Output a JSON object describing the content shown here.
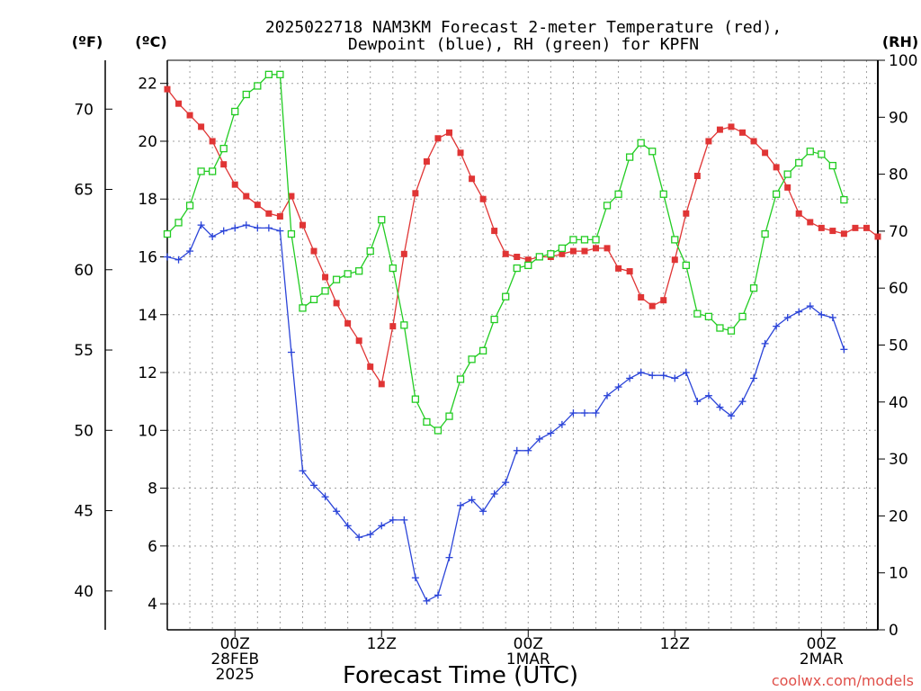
{
  "title_line1": "2025022718 NAM3KM Forecast 2-meter Temperature (red),",
  "title_line2": "Dewpoint (blue), RH (green) for KPFN",
  "xlabel": "Forecast Time (UTC)",
  "credit": "coolwx.com/models",
  "units": {
    "fahrenheit": "(ºF)",
    "celsius": "(ºC)",
    "rh": "(RH)"
  },
  "colors": {
    "temperature": "#e03535",
    "dewpoint": "#2b44d8",
    "rh": "#22cc22",
    "grid": "#a0a0a0"
  },
  "chart_data": {
    "type": "line",
    "x": [
      0,
      1,
      2,
      3,
      4,
      5,
      6,
      7,
      8,
      9,
      10,
      11,
      12,
      13,
      14,
      15,
      16,
      17,
      18,
      19,
      20,
      21,
      22,
      23,
      24,
      25,
      26,
      27,
      28,
      29,
      30,
      31,
      32,
      33,
      34,
      35,
      36,
      37,
      38,
      39,
      40,
      41,
      42,
      43,
      44,
      45,
      46,
      47,
      48,
      49,
      50,
      51,
      52,
      53,
      54,
      55,
      56,
      57,
      58,
      59,
      60,
      61,
      62,
      63
    ],
    "x_tick_labels": [
      {
        "x": 6,
        "lines": [
          "00Z",
          "28FEB",
          "2025"
        ]
      },
      {
        "x": 19,
        "lines": [
          "12Z"
        ]
      },
      {
        "x": 32,
        "lines": [
          "00Z",
          "1MAR"
        ]
      },
      {
        "x": 45,
        "lines": [
          "12Z"
        ]
      },
      {
        "x": 58,
        "lines": [
          "00Z",
          "2MAR"
        ]
      }
    ],
    "xlim": [
      0,
      63
    ],
    "left_axis_celsius": {
      "ylim": [
        3.1,
        22.8
      ],
      "ticks": [
        4,
        6,
        8,
        10,
        12,
        14,
        16,
        18,
        20,
        22
      ]
    },
    "left_axis_fahrenheit": {
      "ticks": [
        40,
        45,
        50,
        55,
        60,
        65,
        70
      ]
    },
    "right_axis_rh": {
      "ylim": [
        0,
        100
      ],
      "ticks": [
        0,
        10,
        20,
        30,
        40,
        50,
        60,
        70,
        80,
        90,
        100
      ]
    },
    "grid": true,
    "series": [
      {
        "name": "Temperature",
        "axis": "celsius",
        "marker": "filled-square",
        "values": [
          21.8,
          21.3,
          20.9,
          20.5,
          20.0,
          19.2,
          18.5,
          18.1,
          17.8,
          17.5,
          17.4,
          18.1,
          17.1,
          16.2,
          15.3,
          14.4,
          13.7,
          13.1,
          12.2,
          11.6,
          13.6,
          16.1,
          18.2,
          19.3,
          20.1,
          20.3,
          19.6,
          18.7,
          18.0,
          16.9,
          16.1,
          16.0,
          15.9,
          16.0,
          16.0,
          16.1,
          16.2,
          16.2,
          16.3,
          16.3,
          15.6,
          15.5,
          14.6,
          14.3,
          14.5,
          15.9,
          17.5,
          18.8,
          20.0,
          20.4,
          20.5,
          20.3,
          20.0,
          19.6,
          19.1,
          18.4,
          17.5,
          17.2,
          17.0,
          16.9,
          16.8,
          17.0,
          17.0,
          16.7
        ]
      },
      {
        "name": "Dewpoint",
        "axis": "celsius",
        "marker": "plus",
        "values": [
          16.0,
          15.9,
          16.2,
          17.1,
          16.7,
          16.9,
          17.0,
          17.1,
          17.0,
          17.0,
          16.9,
          12.7,
          8.6,
          8.1,
          7.7,
          7.2,
          6.7,
          6.3,
          6.4,
          6.7,
          6.9,
          6.9,
          4.9,
          4.1,
          4.3,
          5.6,
          7.4,
          7.6,
          7.2,
          7.8,
          8.2,
          9.3,
          9.3,
          9.7,
          9.9,
          10.2,
          10.6,
          10.6,
          10.6,
          11.2,
          11.5,
          11.8,
          12.0,
          11.9,
          11.9,
          11.8,
          12.0,
          11.0,
          11.2,
          10.8,
          10.5,
          11.0,
          11.8,
          13.0,
          13.6,
          13.9,
          14.1,
          14.3,
          14.0,
          13.9,
          12.8,
          null,
          null,
          null
        ]
      },
      {
        "name": "RH",
        "axis": "rh",
        "marker": "open-square",
        "values": [
          69.5,
          71.5,
          74.5,
          80.5,
          80.5,
          84.5,
          91.0,
          94.0,
          95.5,
          97.5,
          97.5,
          69.5,
          56.5,
          58.0,
          59.5,
          61.5,
          62.5,
          63.0,
          66.5,
          72.0,
          63.5,
          53.5,
          40.5,
          36.5,
          35.0,
          37.5,
          44.0,
          47.5,
          49.0,
          54.5,
          58.5,
          63.5,
          64.0,
          65.5,
          66.0,
          67.0,
          68.5,
          68.5,
          68.5,
          74.5,
          76.5,
          83.0,
          85.5,
          84.0,
          76.5,
          68.5,
          64.0,
          55.5,
          55.0,
          53.0,
          52.5,
          55.0,
          60.0,
          69.5,
          76.5,
          80.0,
          82.0,
          84.0,
          83.5,
          81.5,
          75.5,
          null,
          null,
          null
        ]
      }
    ]
  }
}
